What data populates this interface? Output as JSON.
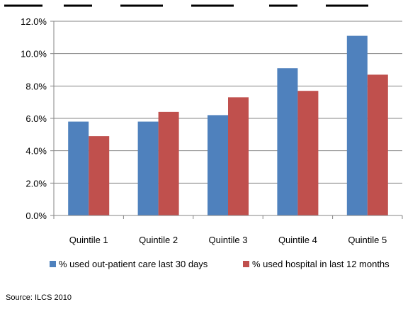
{
  "source": "Source: ILCS 2010",
  "colors": {
    "series_1": "#4F81BD",
    "series_2": "#C0504D",
    "axis": "#868686",
    "grid": "#868686"
  },
  "chart_data": {
    "type": "bar",
    "title": "",
    "xlabel": "",
    "ylabel": "",
    "categories": [
      "Quintile 1",
      "Quintile 2",
      "Quintile 3",
      "Quintile 4",
      "Quintile 5"
    ],
    "series": [
      {
        "name": "% used out-patient care last 30 days",
        "values": [
          5.8,
          5.8,
          6.2,
          9.1,
          11.1
        ]
      },
      {
        "name": "% used hospital in last 12 months",
        "values": [
          4.9,
          6.4,
          7.3,
          7.7,
          8.7
        ]
      }
    ],
    "ylim": [
      0,
      12
    ],
    "yticks": [
      0,
      2,
      4,
      6,
      8,
      10,
      12
    ],
    "ytick_labels": [
      "0.0%",
      "2.0%",
      "4.0%",
      "6.0%",
      "8.0%",
      "10.0%",
      "12.0%"
    ],
    "grid": true,
    "legend_position": "bottom"
  }
}
